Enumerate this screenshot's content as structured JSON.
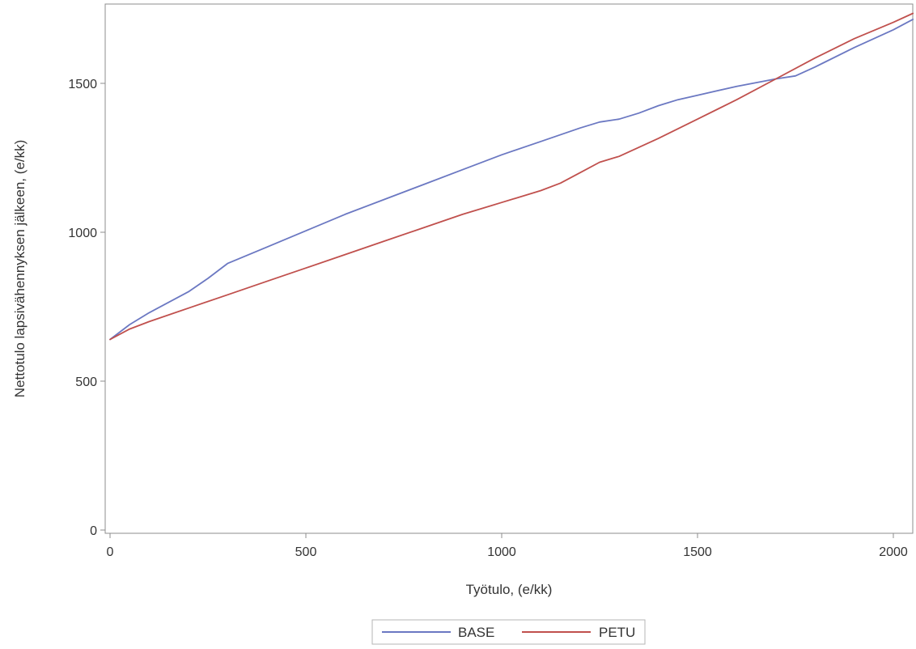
{
  "chart_data": {
    "type": "line",
    "title": "",
    "xlabel": "Työtulo, (e/kk)",
    "ylabel": "Nettotulo lapsivähennyksen jälkeen, (e/kk)",
    "xlim": [
      0,
      2050
    ],
    "ylim": [
      0,
      1750
    ],
    "xticks": [
      0,
      500,
      1000,
      1500,
      2000
    ],
    "yticks": [
      0,
      500,
      1000,
      1500
    ],
    "grid": false,
    "legend_position": "bottom-center",
    "series": [
      {
        "name": "BASE",
        "color": "#6b78c2",
        "x": [
          0,
          50,
          100,
          200,
          250,
          300,
          400,
          500,
          600,
          700,
          800,
          900,
          1000,
          1100,
          1200,
          1250,
          1300,
          1350,
          1400,
          1450,
          1500,
          1600,
          1700,
          1750,
          1800,
          1900,
          2000,
          2050
        ],
        "y": [
          640,
          690,
          730,
          800,
          845,
          895,
          950,
          1005,
          1060,
          1110,
          1160,
          1210,
          1260,
          1305,
          1350,
          1370,
          1380,
          1400,
          1425,
          1445,
          1460,
          1490,
          1515,
          1525,
          1555,
          1620,
          1680,
          1715
        ]
      },
      {
        "name": "PETU",
        "color": "#c0504d",
        "x": [
          0,
          50,
          100,
          200,
          300,
          400,
          500,
          600,
          700,
          800,
          900,
          1000,
          1100,
          1150,
          1200,
          1250,
          1300,
          1400,
          1500,
          1600,
          1700,
          1800,
          1900,
          2000,
          2050
        ],
        "y": [
          640,
          675,
          700,
          745,
          790,
          835,
          880,
          925,
          970,
          1015,
          1060,
          1100,
          1140,
          1165,
          1200,
          1235,
          1255,
          1315,
          1380,
          1445,
          1515,
          1585,
          1650,
          1705,
          1735
        ]
      }
    ]
  }
}
